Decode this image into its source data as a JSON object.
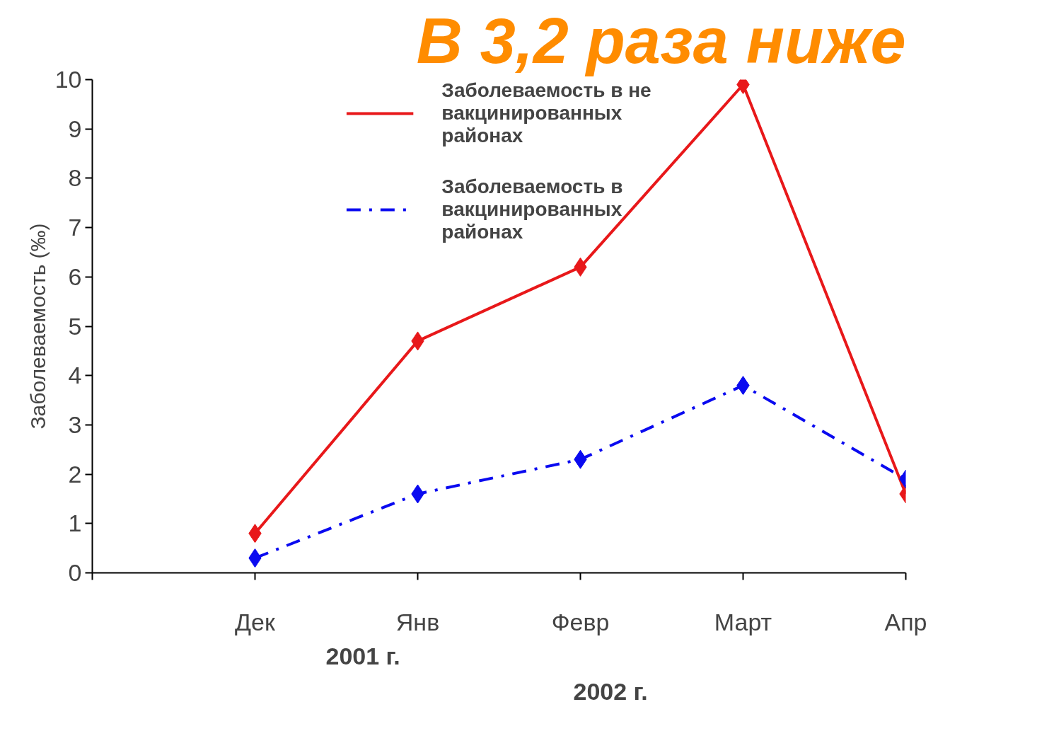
{
  "chart_data": {
    "type": "line",
    "ylabel": "Заболеваемость (‰)",
    "categories": [
      null,
      "Дек",
      "Янв",
      "Февр",
      "Март",
      "Апр"
    ],
    "series": [
      {
        "name": "Заболеваемость в не вакцинированных районах",
        "color": "#e8181a",
        "line_style": "solid",
        "values": [
          null,
          0.8,
          4.7,
          6.2,
          9.9,
          1.6
        ]
      },
      {
        "name": "Заболеваемость в вакцинированных районах",
        "color": "#0a0af0",
        "line_style": "dashdot",
        "values": [
          null,
          0.3,
          1.6,
          2.3,
          3.8,
          1.9
        ]
      }
    ],
    "ylim": [
      0,
      10
    ],
    "yticks": [
      0,
      1,
      2,
      3,
      4,
      5,
      6,
      7,
      8,
      9,
      10
    ],
    "marker": "diamond",
    "legend": "top",
    "grid": false,
    "annotations": [
      "2001 г.",
      "2002 г.",
      "В 3,2 раза ниже"
    ]
  }
}
